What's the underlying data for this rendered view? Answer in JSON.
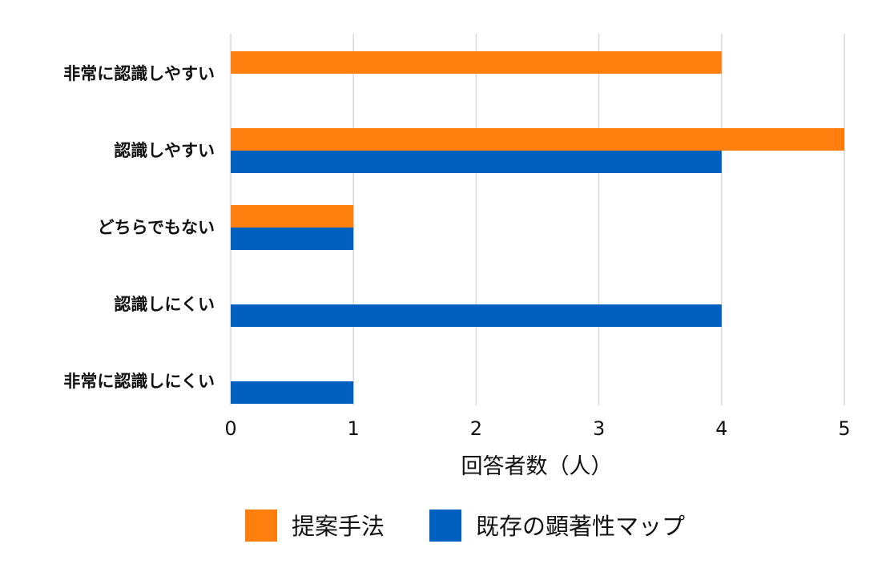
{
  "chart_data": {
    "type": "bar",
    "orientation": "horizontal",
    "title": "",
    "categories": [
      "非常に認識しやすい",
      "認識しやすい",
      "どちらでもない",
      "認識しにくい",
      "非常に認識しにくい"
    ],
    "series": [
      {
        "name": "提案手法",
        "color": "#ff7f0e",
        "values": [
          4,
          5,
          1,
          0,
          0
        ]
      },
      {
        "name": "既存の顕著性マップ",
        "color": "#0060c0",
        "values": [
          0,
          4,
          1,
          4,
          1
        ]
      }
    ],
    "xlabel": "回答者数（人）",
    "ylabel": "",
    "xlim": [
      0,
      5
    ],
    "xticks": [
      0,
      1,
      2,
      3,
      4,
      5
    ],
    "grid": true,
    "legend_position": "bottom"
  }
}
